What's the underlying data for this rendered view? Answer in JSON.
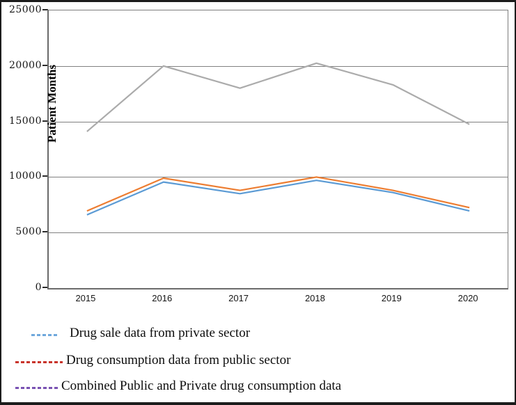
{
  "chart_data": {
    "type": "line",
    "x": [
      "2015",
      "2016",
      "2017",
      "2018",
      "2019",
      "2020"
    ],
    "series": [
      {
        "name": "Drug sale data from private sector",
        "color": "#5B9BD5",
        "values": [
          6600,
          9550,
          8500,
          9700,
          8600,
          6950
        ]
      },
      {
        "name": "Drug consumption data from public sector",
        "color": "#ED7D31",
        "values": [
          6950,
          9900,
          8800,
          10000,
          8800,
          7250
        ]
      },
      {
        "name": "Combined Public and Private drug consumption data",
        "color": "#ABABAB",
        "values": [
          14100,
          20000,
          18000,
          20250,
          18300,
          14750
        ]
      }
    ],
    "title": "",
    "xlabel": "",
    "ylabel": "Patient Months",
    "yticks": [
      0,
      5000,
      10000,
      15000,
      20000,
      25000
    ],
    "ylim": [
      0,
      25000
    ],
    "grid": true,
    "legend_position": "below-chart"
  },
  "legend": {
    "items": [
      {
        "label": "Drug sale data from private sector",
        "color": "#6FA8DC",
        "style": "dashed"
      },
      {
        "label": "Drug consumption data from public sector",
        "color": "#C9342B",
        "style": "dashed"
      },
      {
        "label": "Combined Public and Private drug consumption data",
        "color": "#7952B3",
        "style": "dashed"
      }
    ]
  },
  "colors": {
    "frame_border": "#1c1c1c",
    "axis": "#6a6a6a",
    "gridline": "#808080"
  }
}
